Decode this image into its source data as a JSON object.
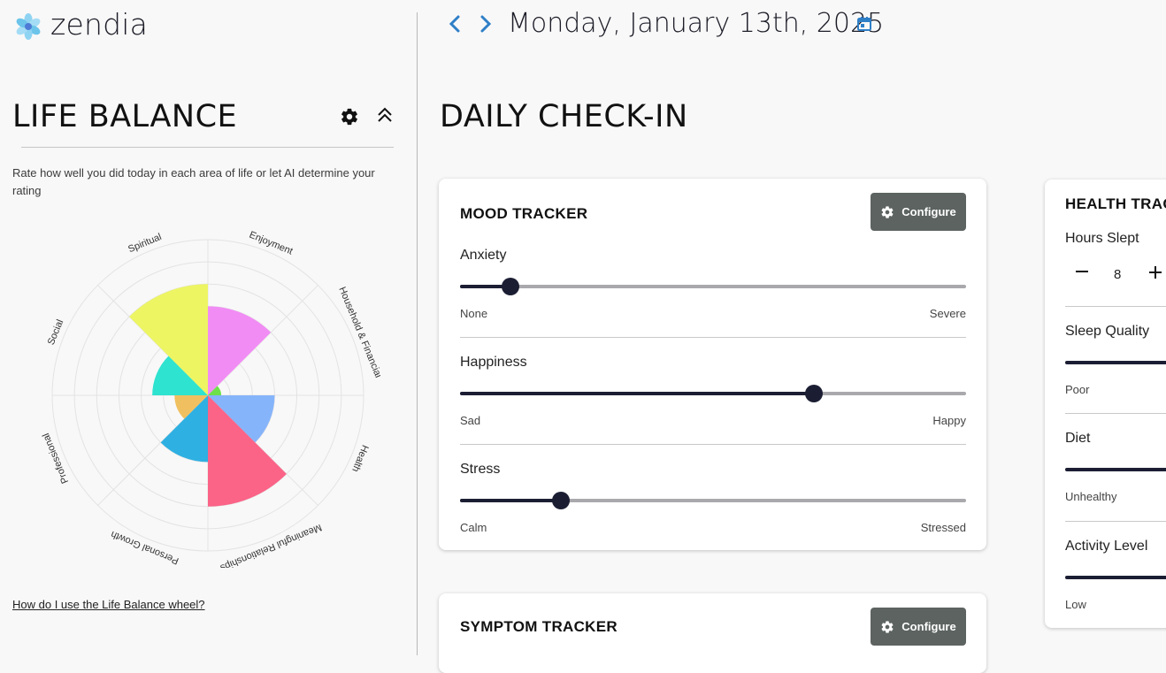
{
  "app": {
    "name": "zendia"
  },
  "header": {
    "date": "Monday, January 13th, 2025",
    "prev_icon": "chevron-left-icon",
    "next_icon": "chevron-right-icon",
    "calendar_icon": "calendar-icon"
  },
  "life_balance": {
    "title": "LIFE BALANCE",
    "description": "Rate how well you did today in each area of life or let AI determine your rating",
    "help_link": "How do I use the Life Balance wheel?",
    "areas": [
      {
        "name": "Enjoyment",
        "level": 4,
        "color": "#f28cf5"
      },
      {
        "name": "Household & Financial",
        "level": 0.6,
        "color": "#6ee04a"
      },
      {
        "name": "Health",
        "level": 3,
        "color": "#86b4fa"
      },
      {
        "name": "Meaningful Relationships",
        "level": 5,
        "color": "#fb6387"
      },
      {
        "name": "Personal Growth",
        "level": 0,
        "color": "#cccccc"
      },
      {
        "name": "Professional",
        "level": 3,
        "color": "#2fb0e2"
      },
      {
        "name": "Social",
        "level": 1.5,
        "color": "#f0c060"
      },
      {
        "name": "Spiritual",
        "level": 2.5,
        "color": "#2ee3cf"
      },
      {
        "name": "",
        "level": 5,
        "color": "#edf563"
      }
    ]
  },
  "daily_checkin": {
    "title": "DAILY CHECK-IN",
    "mood": {
      "title": "MOOD TRACKER",
      "configure": "Configure",
      "sliders": [
        {
          "label": "Anxiety",
          "min": "None",
          "max": "Severe",
          "value": 0.1
        },
        {
          "label": "Happiness",
          "min": "Sad",
          "max": "Happy",
          "value": 0.7
        },
        {
          "label": "Stress",
          "min": "Calm",
          "max": "Stressed",
          "value": 0.2
        }
      ]
    },
    "symptom": {
      "title": "SYMPTOM TRACKER",
      "configure": "Configure"
    },
    "health": {
      "title": "HEALTH TRACKER",
      "hours_slept_label": "Hours Slept",
      "hours_slept_value": "8",
      "sliders": [
        {
          "label": "Sleep Quality",
          "min": "Poor"
        },
        {
          "label": "Diet",
          "min": "Unhealthy"
        },
        {
          "label": "Activity Level",
          "min": "Low"
        }
      ]
    }
  }
}
